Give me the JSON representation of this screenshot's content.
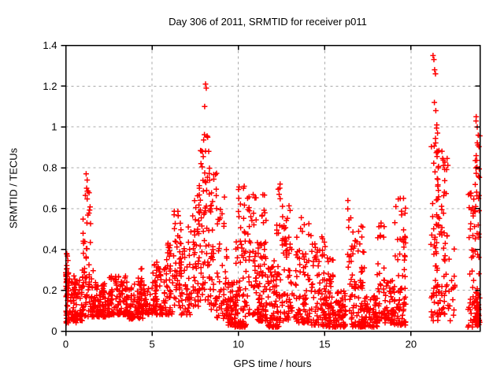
{
  "window": {
    "title": "Day 306 of 2011, SRMTID for receiver p011"
  },
  "chart_data": {
    "type": "scatter",
    "title": "Day 306 of 2011, SRMTID for receiver p011",
    "xlabel": "GPS time / hours",
    "ylabel": "SRMTID / TECUs",
    "xlim": [
      0,
      24
    ],
    "ylim": [
      0,
      1.4
    ],
    "xticks": {
      "values": [
        0,
        5,
        10,
        15,
        20
      ],
      "labels": [
        "0",
        "5",
        "10",
        "15",
        "20"
      ]
    },
    "yticks": {
      "values": [
        0,
        0.2,
        0.4,
        0.6,
        0.8,
        1.0,
        1.2,
        1.4
      ],
      "labels": [
        "0",
        "0.2",
        "0.4",
        "0.6",
        "0.8",
        "1",
        "1.2",
        "1.4"
      ]
    },
    "grid": true,
    "legend": "none",
    "marker": "plus",
    "marker_color": "#ff0000",
    "grid_color": "#a8a8a8",
    "border_color": "#000000",
    "seed": 20110306,
    "clusters_note": "dense scatter of ~2240 points; reproduced as vertical burst clusters: x=[start,end] hours, n points, y=[min,max] TECUs, bias>1 skews points toward y-min",
    "clusters": [
      {
        "x": [
          0.0,
          0.15
        ],
        "n": 22,
        "y": [
          0.15,
          0.38
        ],
        "bias": 1.0
      },
      {
        "x": [
          0.02,
          0.6
        ],
        "n": 55,
        "y": [
          0.04,
          0.3
        ],
        "bias": 1.7
      },
      {
        "x": [
          0.4,
          1.0
        ],
        "n": 65,
        "y": [
          0.05,
          0.28
        ],
        "bias": 1.6
      },
      {
        "x": [
          1.0,
          1.45
        ],
        "n": 28,
        "y": [
          0.25,
          0.78
        ],
        "bias": 1.3
      },
      {
        "x": [
          0.95,
          1.6
        ],
        "n": 45,
        "y": [
          0.07,
          0.3
        ],
        "bias": 1.5
      },
      {
        "x": [
          1.5,
          2.5
        ],
        "n": 95,
        "y": [
          0.07,
          0.24
        ],
        "bias": 1.7
      },
      {
        "x": [
          2.5,
          3.6
        ],
        "n": 105,
        "y": [
          0.08,
          0.27
        ],
        "bias": 1.8
      },
      {
        "x": [
          3.6,
          4.6
        ],
        "n": 90,
        "y": [
          0.06,
          0.23
        ],
        "bias": 1.7
      },
      {
        "x": [
          4.15,
          4.45
        ],
        "n": 10,
        "y": [
          0.22,
          0.31
        ],
        "bias": 1.0
      },
      {
        "x": [
          4.6,
          5.3
        ],
        "n": 60,
        "y": [
          0.08,
          0.24
        ],
        "bias": 1.6
      },
      {
        "x": [
          5.05,
          5.5
        ],
        "n": 14,
        "y": [
          0.24,
          0.34
        ],
        "bias": 1.0
      },
      {
        "x": [
          5.4,
          6.2
        ],
        "n": 60,
        "y": [
          0.08,
          0.35
        ],
        "bias": 1.7
      },
      {
        "x": [
          5.9,
          6.1
        ],
        "n": 10,
        "y": [
          0.28,
          0.43
        ],
        "bias": 1.0
      },
      {
        "x": [
          6.25,
          6.62
        ],
        "n": 35,
        "y": [
          0.12,
          0.6
        ],
        "bias": 1.4
      },
      {
        "x": [
          6.6,
          7.3
        ],
        "n": 55,
        "y": [
          0.08,
          0.55
        ],
        "bias": 1.6
      },
      {
        "x": [
          7.35,
          7.8
        ],
        "n": 50,
        "y": [
          0.12,
          0.72
        ],
        "bias": 1.4
      },
      {
        "x": [
          7.78,
          8.35
        ],
        "n": 55,
        "y": [
          0.15,
          0.97
        ],
        "bias": 1.3
      },
      {
        "x": [
          8.3,
          8.78
        ],
        "n": 42,
        "y": [
          0.1,
          0.8
        ],
        "bias": 1.5
      },
      {
        "x": [
          8.75,
          9.35
        ],
        "n": 45,
        "y": [
          0.06,
          0.66
        ],
        "bias": 1.6
      },
      {
        "x": [
          9.3,
          9.85
        ],
        "n": 55,
        "y": [
          0.03,
          0.25
        ],
        "bias": 1.6
      },
      {
        "x": [
          9.8,
          10.45
        ],
        "n": 75,
        "y": [
          0.02,
          0.45
        ],
        "bias": 2.2
      },
      {
        "x": [
          10.0,
          10.4
        ],
        "n": 12,
        "y": [
          0.45,
          0.72
        ],
        "bias": 1.0
      },
      {
        "x": [
          10.5,
          11.15
        ],
        "n": 55,
        "y": [
          0.08,
          0.67
        ],
        "bias": 1.7
      },
      {
        "x": [
          11.1,
          11.7
        ],
        "n": 70,
        "y": [
          0.05,
          0.45
        ],
        "bias": 2.0
      },
      {
        "x": [
          11.35,
          11.62
        ],
        "n": 8,
        "y": [
          0.52,
          0.7
        ],
        "bias": 1.0
      },
      {
        "x": [
          11.7,
          12.45
        ],
        "n": 85,
        "y": [
          0.02,
          0.35
        ],
        "bias": 2.2
      },
      {
        "x": [
          12.2,
          12.6
        ],
        "n": 14,
        "y": [
          0.4,
          0.73
        ],
        "bias": 1.0
      },
      {
        "x": [
          12.5,
          13.15
        ],
        "n": 60,
        "y": [
          0.05,
          0.62
        ],
        "bias": 1.7
      },
      {
        "x": [
          13.2,
          14.15
        ],
        "n": 80,
        "y": [
          0.04,
          0.56
        ],
        "bias": 1.9
      },
      {
        "x": [
          14.2,
          15.05
        ],
        "n": 70,
        "y": [
          0.03,
          0.48
        ],
        "bias": 2.0
      },
      {
        "x": [
          15.05,
          15.5
        ],
        "n": 18,
        "y": [
          0.18,
          0.37
        ],
        "bias": 1.2
      },
      {
        "x": [
          14.9,
          16.25
        ],
        "n": 115,
        "y": [
          0.02,
          0.2
        ],
        "bias": 1.7
      },
      {
        "x": [
          16.3,
          16.55
        ],
        "n": 13,
        "y": [
          0.1,
          0.62
        ],
        "bias": 1.0
      },
      {
        "x": [
          16.5,
          17.3
        ],
        "n": 85,
        "y": [
          0.02,
          0.52
        ],
        "bias": 2.3
      },
      {
        "x": [
          17.3,
          18.05
        ],
        "n": 60,
        "y": [
          0.02,
          0.18
        ],
        "bias": 1.5
      },
      {
        "x": [
          18.0,
          18.45
        ],
        "n": 30,
        "y": [
          0.05,
          0.56
        ],
        "bias": 1.9
      },
      {
        "x": [
          18.4,
          19.05
        ],
        "n": 55,
        "y": [
          0.04,
          0.25
        ],
        "bias": 1.6
      },
      {
        "x": [
          19.0,
          19.7
        ],
        "n": 75,
        "y": [
          0.03,
          0.66
        ],
        "bias": 2.1
      },
      {
        "x": [
          21.15,
          21.65
        ],
        "n": 65,
        "y": [
          0.05,
          1.0
        ],
        "bias": 1.6
      },
      {
        "x": [
          21.55,
          22.15
        ],
        "n": 55,
        "y": [
          0.08,
          0.92
        ],
        "bias": 1.6
      },
      {
        "x": [
          22.15,
          22.55
        ],
        "n": 15,
        "y": [
          0.04,
          0.5
        ],
        "bias": 1.5
      },
      {
        "x": [
          23.3,
          24.0
        ],
        "n": 65,
        "y": [
          0.02,
          0.68
        ],
        "bias": 1.6
      },
      {
        "x": [
          23.7,
          24.0
        ],
        "n": 45,
        "y": [
          0.03,
          0.22
        ],
        "bias": 1.4
      },
      {
        "x": [
          23.72,
          24.0
        ],
        "n": 18,
        "y": [
          0.6,
          1.06
        ],
        "bias": 1.0
      }
    ],
    "outliers": [
      [
        8.1,
        1.21
      ],
      [
        8.14,
        1.19
      ],
      [
        8.05,
        1.1
      ],
      [
        8.22,
        0.95
      ],
      [
        8.28,
        0.88
      ],
      [
        1.18,
        0.77
      ],
      [
        1.24,
        0.74
      ],
      [
        1.21,
        0.7
      ],
      [
        21.28,
        1.35
      ],
      [
        21.33,
        1.33
      ],
      [
        21.37,
        1.28
      ],
      [
        21.42,
        1.26
      ],
      [
        21.36,
        1.12
      ],
      [
        21.44,
        1.08
      ],
      [
        21.5,
        1.01
      ],
      [
        21.54,
        0.97
      ],
      [
        23.78,
        1.05
      ],
      [
        23.84,
        1.0
      ],
      [
        23.9,
        0.96
      ],
      [
        16.35,
        0.64
      ],
      [
        12.42,
        0.72
      ],
      [
        10.3,
        0.7
      ],
      [
        0.05,
        0.38
      ]
    ]
  }
}
